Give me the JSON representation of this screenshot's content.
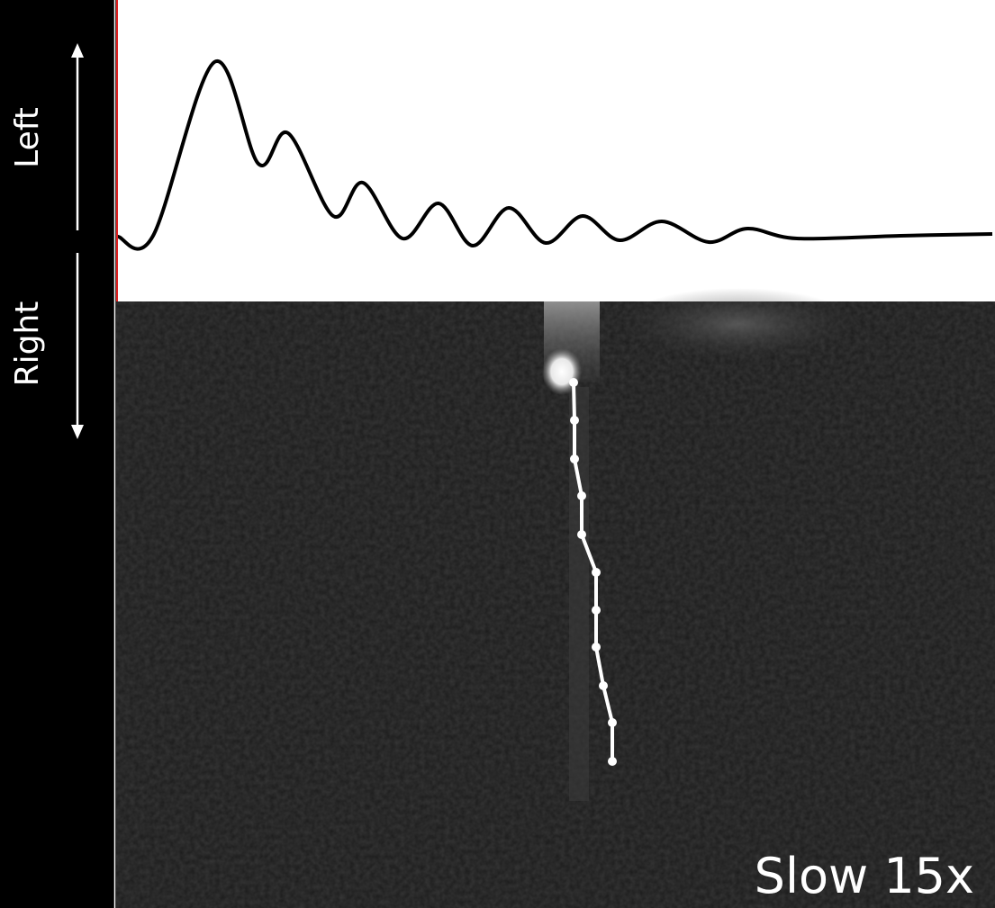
{
  "axis_labels": {
    "left": "Left",
    "right": "Right"
  },
  "caption": "Slow 15x"
}
